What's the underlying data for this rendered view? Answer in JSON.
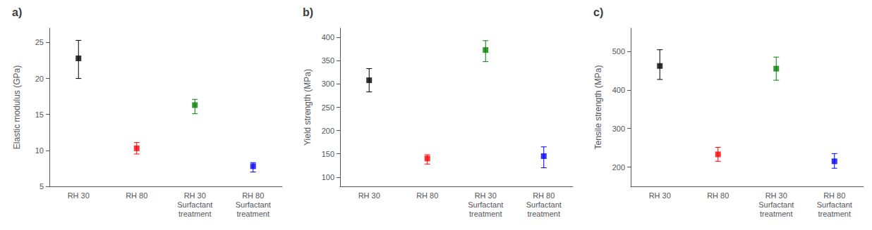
{
  "chart_data": [
    {
      "type": "scatter",
      "title": "a)",
      "ylabel": "Elastic modulus (GPa)",
      "categories": [
        "RH 30",
        "RH 80",
        "RH 30\nSurfactant\ntreatment",
        "RH 80\nSurfactant\ntreatment"
      ],
      "values": [
        22.8,
        10.3,
        16.3,
        7.8
      ],
      "yerr_lo": [
        2.8,
        0.8,
        1.2,
        0.8
      ],
      "yerr_hi": [
        2.5,
        0.8,
        0.8,
        0.5
      ],
      "colors": [
        "black",
        "red",
        "green",
        "blue"
      ],
      "marker": "square",
      "ylim": [
        5,
        27
      ],
      "yticks": [
        5,
        10,
        15,
        20,
        25
      ],
      "grid": false
    },
    {
      "type": "scatter",
      "title": "b)",
      "ylabel": "Yield strength (MPa)",
      "categories": [
        "RH 30",
        "RH 80",
        "RH 30\nSurfactant\ntreatment",
        "RH 80\nSurfactant\ntreatment"
      ],
      "values": [
        308,
        140,
        373,
        145
      ],
      "yerr_lo": [
        25,
        12,
        25,
        25
      ],
      "yerr_hi": [
        25,
        8,
        20,
        20
      ],
      "colors": [
        "black",
        "red",
        "green",
        "blue"
      ],
      "marker": "square",
      "ylim": [
        80,
        420
      ],
      "yticks": [
        100,
        150,
        200,
        250,
        300,
        350,
        400
      ],
      "grid": false
    },
    {
      "type": "scatter",
      "title": "c)",
      "ylabel": "Tensile strength (MPa)",
      "categories": [
        "RH 30",
        "RH 80",
        "RH 30\nSurfactant\ntreatment",
        "RH 80\nSurfactant\ntreatment"
      ],
      "values": [
        462,
        233,
        455,
        215
      ],
      "yerr_lo": [
        35,
        18,
        30,
        18
      ],
      "yerr_hi": [
        42,
        18,
        30,
        20
      ],
      "colors": [
        "black",
        "red",
        "green",
        "blue"
      ],
      "marker": "square",
      "ylim": [
        150,
        560
      ],
      "yticks": [
        200,
        300,
        400,
        500
      ],
      "grid": false
    }
  ]
}
